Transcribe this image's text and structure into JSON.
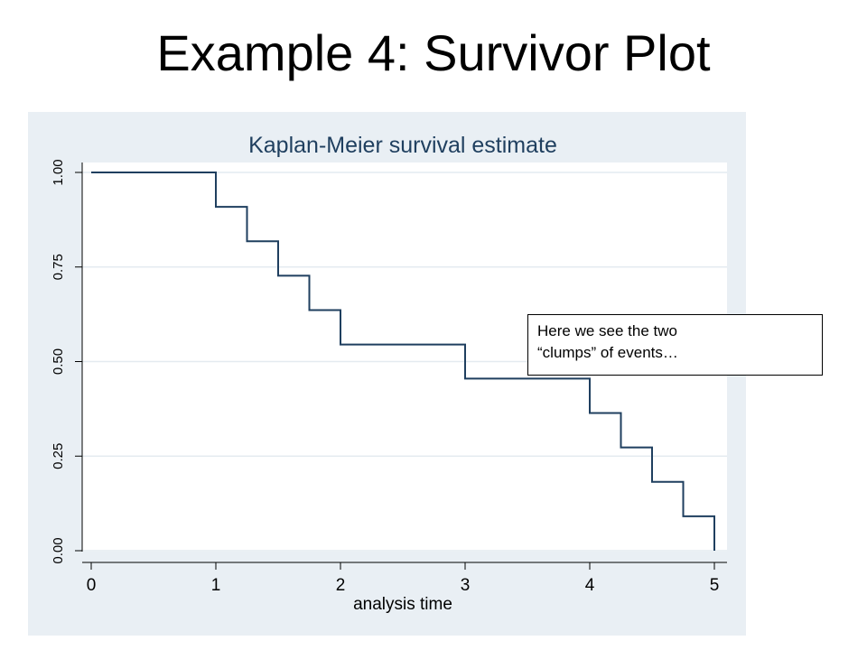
{
  "slide": {
    "title": "Example 4:  Survivor Plot"
  },
  "annotation": {
    "line1": "Here we see the two",
    "line2": "“clumps” of events…"
  },
  "colors": {
    "panel_bg": "#e9eff4",
    "plot_bg": "#ffffff",
    "line": "#1f3f5f",
    "grid": "#e4ebf0",
    "text": "#000000"
  },
  "chart_data": {
    "type": "line",
    "step": true,
    "title": "Kaplan-Meier survival estimate",
    "xlabel": "analysis time",
    "ylabel": "",
    "xlim": [
      0,
      5
    ],
    "ylim": [
      0,
      1
    ],
    "grid": true,
    "legend": "none",
    "xticks": [
      0,
      1,
      2,
      3,
      4,
      5
    ],
    "xtick_labels": [
      "0",
      "1",
      "2",
      "3",
      "4",
      "5"
    ],
    "yticks": [
      0,
      0.25,
      0.5,
      0.75,
      1
    ],
    "ytick_labels": [
      "0.00",
      "0.25",
      "0.50",
      "0.75",
      "1.00"
    ],
    "series": [
      {
        "x": [
          0,
          1,
          1.25,
          1.5,
          1.75,
          2,
          3,
          4,
          4.25,
          4.5,
          4.75,
          5
        ],
        "y": [
          1.0,
          0.909,
          0.818,
          0.727,
          0.636,
          0.545,
          0.455,
          0.364,
          0.273,
          0.182,
          0.091,
          0.0
        ]
      }
    ]
  }
}
